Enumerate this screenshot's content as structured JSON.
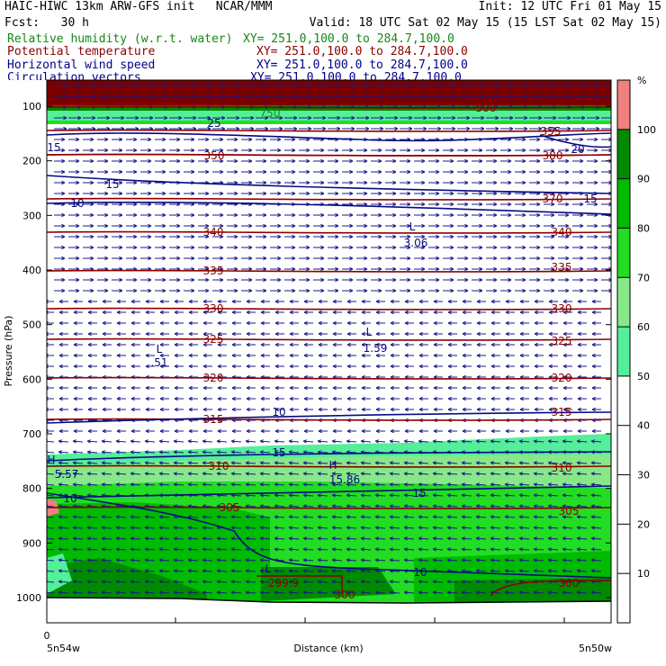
{
  "header": {
    "left_line1": "HAIC-HIWC 13km ARW-GFS init   NCAR/MMM",
    "right_line1": "Init: 12 UTC Fri 01 May 15",
    "left_line2": "Fcst:   30 h",
    "right_line2": "Valid: 18 UTC Sat 02 May 15 (15 LST Sat 02 May 15)"
  },
  "fields": [
    {
      "name": "Relative humidity (w.r.t. water)",
      "xy": "XY= 251.0,100.0 to 284.7,100.0",
      "color": "#138a13"
    },
    {
      "name": "Potential temperature",
      "xy": "XY= 251.0,100.0 to 284.7,100.0",
      "color": "#8b0000"
    },
    {
      "name": "Horizontal wind speed",
      "xy": "XY= 251.0,100.0 to 284.7,100.0",
      "color": "#00008b"
    },
    {
      "name": "Circulation vectors",
      "xy": "XY= 251.0,100.0 to 284.7,100.0",
      "color": "#00008b"
    }
  ],
  "chart_data": {
    "type": "cross-section",
    "xlabel": "Distance (km)",
    "ylabel": "Pressure (hPa)",
    "x_ticks": [
      "0"
    ],
    "x_end_labels": [
      "5n54w",
      "5n50w"
    ],
    "y_ticks": [
      100,
      200,
      300,
      400,
      500,
      600,
      700,
      800,
      900,
      1000
    ],
    "ylim": [
      1050,
      70
    ],
    "colorbar": {
      "unit": "%",
      "ticks": [
        10,
        20,
        30,
        40,
        50,
        60,
        70,
        80,
        90,
        100
      ],
      "bands": [
        {
          "min": 50,
          "max": 60,
          "color": "#55ee99"
        },
        {
          "min": 60,
          "max": 70,
          "color": "#88e888"
        },
        {
          "min": 70,
          "max": 80,
          "color": "#22dd22"
        },
        {
          "min": 80,
          "max": 90,
          "color": "#00bb00"
        },
        {
          "min": 90,
          "max": 100,
          "color": "#008a00"
        },
        {
          "min": 100,
          "max": 110,
          "color": "#f08080"
        }
      ]
    },
    "theta_contours": [
      {
        "label": "299.9",
        "color": "#8b0000"
      },
      {
        "label": "300",
        "color": "#8b0000"
      },
      {
        "label": "305",
        "color": "#8b0000"
      },
      {
        "label": "310",
        "color": "#8b0000"
      },
      {
        "label": "315",
        "color": "#8b0000"
      },
      {
        "label": "320",
        "color": "#8b0000"
      },
      {
        "label": "325",
        "color": "#8b0000"
      },
      {
        "label": "330",
        "color": "#8b0000"
      },
      {
        "label": "335",
        "color": "#8b0000"
      },
      {
        "label": "340",
        "color": "#8b0000"
      },
      {
        "label": "350",
        "color": "#8b0000"
      },
      {
        "label": "355",
        "color": "#8b0000"
      },
      {
        "label": "370",
        "color": "#8b0000"
      },
      {
        "label": "380",
        "color": "#8b0000"
      },
      {
        "label": "500",
        "color": "#8b0000"
      },
      {
        "label": "750",
        "color": "#138a13"
      }
    ],
    "wind_labels": [
      "10",
      "15",
      "20",
      "25"
    ],
    "extrema": [
      {
        "type": "H",
        "value": "5.57"
      },
      {
        "type": "H",
        "value": "15.86"
      },
      {
        "type": "L",
        "value": "3.06"
      },
      {
        "type": "L",
        "value": "1.59"
      },
      {
        "type": "L",
        "value": ".51"
      },
      {
        "type": "L",
        "value": ""
      }
    ]
  }
}
